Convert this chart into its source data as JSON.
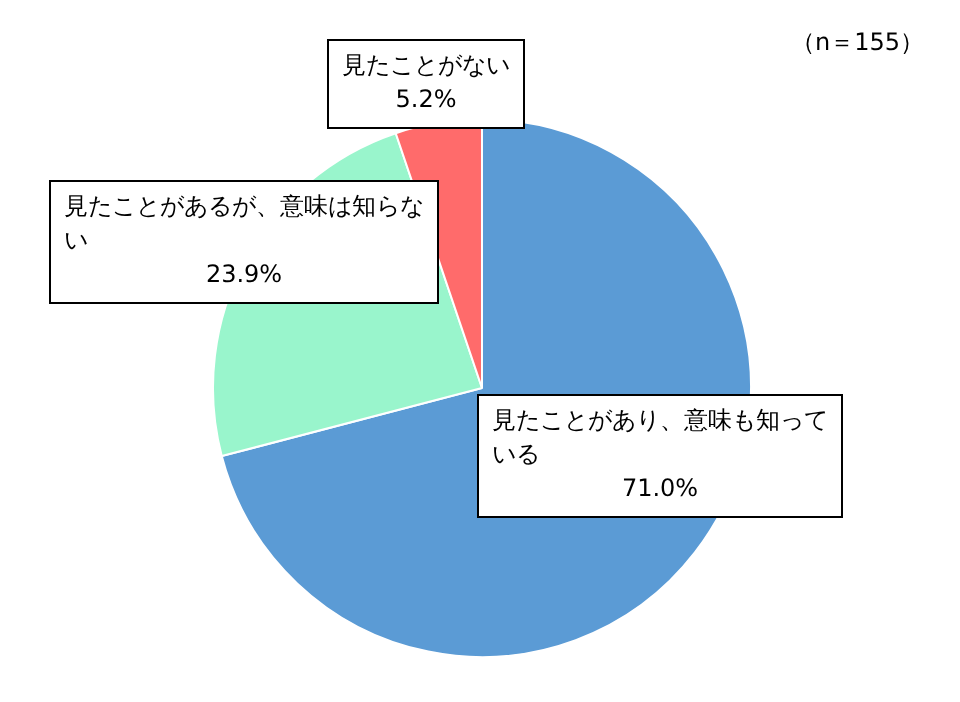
{
  "chart_data": {
    "type": "pie",
    "categories": [
      "見たことがあり、意味も知っている",
      "見たことがあるが、意味は知らない",
      "見たことがない"
    ],
    "values": [
      71.0,
      23.9,
      5.2
    ],
    "colors": [
      "#5b9bd5",
      "#99f5cc",
      "#ff6b6b"
    ],
    "value_labels": [
      "71.0%",
      "23.9%",
      "5.2%"
    ],
    "annotations": [
      "（n＝155）"
    ],
    "legend": false
  }
}
